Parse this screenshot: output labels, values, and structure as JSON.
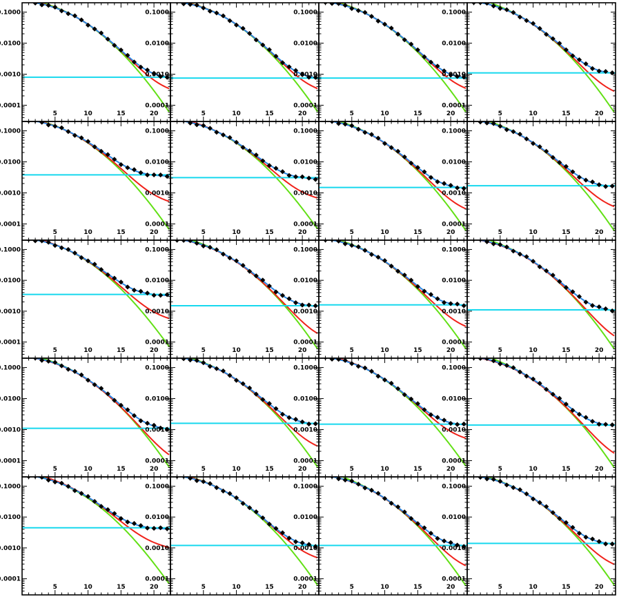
{
  "colors": {
    "data": "#000000",
    "total_model": "#2b86e0",
    "model_red": "#f0221a",
    "model_green": "#62e015",
    "background_level": "#16d8ee"
  },
  "chart_data": {
    "type": "scatter",
    "layout": "grid of 20 panels, 5 rows by 4 columns, shared axes",
    "y_scale": "log",
    "xlim": [
      0,
      22.5
    ],
    "ylim": [
      3e-05,
      0.2
    ],
    "x_ticks": [
      5,
      10,
      15,
      20
    ],
    "x_tick_labels": [
      "5",
      "10",
      "15",
      "20"
    ],
    "y_ticks": [
      0.0001,
      0.001,
      0.01,
      0.1
    ],
    "y_tick_labels": [
      "0.0001",
      "0.0010",
      "0.0100",
      "0.1000"
    ],
    "grid": false,
    "legend": "none",
    "x": [
      1,
      2,
      3,
      4,
      5,
      6,
      7,
      8,
      9,
      10,
      11,
      12,
      13,
      14,
      15,
      16,
      17,
      18,
      19,
      20,
      21,
      22
    ],
    "panels": [
      {
        "background": 0.0008,
        "cross": 0.0028,
        "green_fall": 0.48,
        "red_tail": 0.00028,
        "red_fall": 0.2
      },
      {
        "background": 0.00075,
        "cross": 0.0022,
        "green_fall": 0.43,
        "red_tail": 0.00028,
        "red_fall": 0.18
      },
      {
        "background": 0.00075,
        "cross": 0.0028,
        "green_fall": 0.5,
        "red_tail": 0.00028,
        "red_fall": 0.17
      },
      {
        "background": 0.0011,
        "cross": 0.0033,
        "green_fall": 0.55,
        "red_tail": 0.0002,
        "red_fall": 0.16
      },
      {
        "background": 0.0038,
        "cross": 0.0035,
        "green_fall": 0.42,
        "red_tail": 0.00045,
        "red_fall": 0.15
      },
      {
        "background": 0.0031,
        "cross": 0.0035,
        "green_fall": 0.4,
        "red_tail": 0.0006,
        "red_fall": 0.14
      },
      {
        "background": 0.0015,
        "cross": 0.0032,
        "green_fall": 0.48,
        "red_tail": 0.00023,
        "red_fall": 0.17
      },
      {
        "background": 0.0017,
        "cross": 0.0035,
        "green_fall": 0.5,
        "red_tail": 0.00028,
        "red_fall": 0.16
      },
      {
        "background": 0.0035,
        "cross": 0.0032,
        "green_fall": 0.38,
        "red_tail": 0.0005,
        "red_fall": 0.14
      },
      {
        "background": 0.0015,
        "cross": 0.0028,
        "green_fall": 0.5,
        "red_tail": 0.00012,
        "red_fall": 0.19
      },
      {
        "background": 0.0016,
        "cross": 0.0028,
        "green_fall": 0.48,
        "red_tail": 0.00025,
        "red_fall": 0.17
      },
      {
        "background": 0.0011,
        "cross": 0.0032,
        "green_fall": 0.52,
        "red_tail": 9e-05,
        "red_fall": 0.21
      },
      {
        "background": 0.0011,
        "cross": 0.0028,
        "green_fall": 0.45,
        "red_tail": 9e-05,
        "red_fall": 0.22
      },
      {
        "background": 0.0016,
        "cross": 0.003,
        "green_fall": 0.45,
        "red_tail": 0.00022,
        "red_fall": 0.17
      },
      {
        "background": 0.0015,
        "cross": 0.0026,
        "green_fall": 0.4,
        "red_tail": 0.00045,
        "red_fall": 0.14
      },
      {
        "background": 0.0014,
        "cross": 0.0038,
        "green_fall": 0.55,
        "red_tail": 0.0001,
        "red_fall": 0.2
      },
      {
        "background": 0.0045,
        "cross": 0.0035,
        "green_fall": 0.4,
        "red_tail": 0.00095,
        "red_fall": 0.13
      },
      {
        "background": 0.0012,
        "cross": 0.0028,
        "green_fall": 0.45,
        "red_tail": 0.0004,
        "red_fall": 0.14
      },
      {
        "background": 0.0012,
        "cross": 0.0035,
        "green_fall": 0.55,
        "red_tail": 0.00018,
        "red_fall": 0.16
      },
      {
        "background": 0.0014,
        "cross": 0.0028,
        "green_fall": 0.45,
        "red_tail": 0.00022,
        "red_fall": 0.17
      }
    ]
  }
}
